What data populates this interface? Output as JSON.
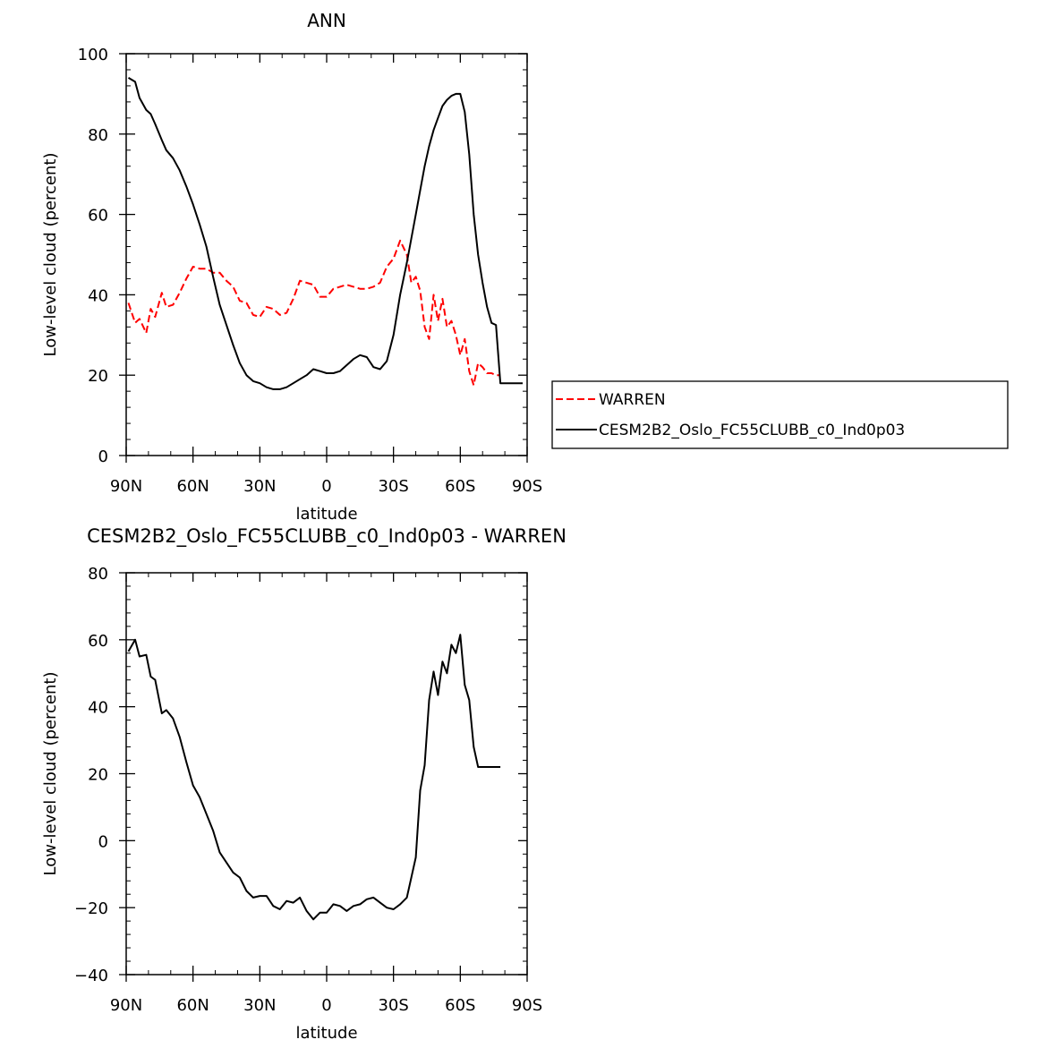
{
  "chart_data": [
    {
      "type": "line",
      "title": "ANN",
      "xlabel": "latitude",
      "ylabel": "Low-level cloud (percent)",
      "xlim": [
        -90,
        90
      ],
      "ylim": [
        0,
        100
      ],
      "x_ticks": [
        -90,
        -60,
        -30,
        0,
        30,
        60,
        90
      ],
      "x_tick_labels": [
        "90N",
        "60N",
        "30N",
        "0",
        "30S",
        "60S",
        "90S"
      ],
      "y_ticks": [
        0,
        20,
        40,
        60,
        80,
        100
      ],
      "y_tick_labels": [
        "0",
        "20",
        "40",
        "60",
        "80",
        "100"
      ],
      "legend_position": "right",
      "series": [
        {
          "name": "WARREN",
          "color": "#ff0000",
          "dash": "dashed",
          "x": [
            -89,
            -86,
            -84,
            -81,
            -79,
            -77,
            -74,
            -72,
            -69,
            -66,
            -63,
            -60,
            -57,
            -54,
            -51,
            -48,
            -45,
            -42,
            -39,
            -36,
            -33,
            -30,
            -27,
            -24,
            -21,
            -18,
            -15,
            -12,
            -9,
            -6,
            -3,
            0,
            3,
            6,
            9,
            12,
            15,
            18,
            21,
            24,
            27,
            30,
            33,
            36,
            38,
            40,
            42,
            44,
            46,
            48,
            50,
            52,
            54,
            56,
            58,
            60,
            62,
            64,
            66,
            68,
            70,
            72,
            74,
            76,
            78
          ],
          "y": [
            38,
            33,
            34,
            30.5,
            36.5,
            34.5,
            40.5,
            37,
            37.5,
            40.5,
            44,
            47,
            46.5,
            46.5,
            45.5,
            45.5,
            43.5,
            42,
            38.5,
            38,
            35,
            34.5,
            37,
            36.5,
            35,
            35.5,
            39,
            43.5,
            43,
            42.5,
            39.5,
            39.5,
            41.5,
            42,
            42.5,
            42,
            41.5,
            41.5,
            42,
            43,
            47,
            49,
            53.5,
            50,
            43,
            44.5,
            41,
            32,
            29,
            40,
            33.5,
            39,
            32,
            33.5,
            30,
            25,
            29,
            21,
            17.5,
            23,
            22,
            20.5,
            20.5,
            20,
            20
          ]
        },
        {
          "name": "CESM2B2_Oslo_FC55CLUBB_c0_Ind0p03",
          "color": "#000000",
          "dash": "solid",
          "x": [
            -89,
            -86,
            -84,
            -81,
            -79,
            -77,
            -74,
            -72,
            -69,
            -66,
            -63,
            -60,
            -57,
            -54,
            -51,
            -48,
            -45,
            -42,
            -39,
            -36,
            -33,
            -30,
            -27,
            -24,
            -21,
            -18,
            -15,
            -12,
            -9,
            -6,
            -3,
            0,
            3,
            6,
            9,
            12,
            15,
            18,
            21,
            24,
            27,
            30,
            33,
            36,
            38,
            40,
            42,
            44,
            46,
            48,
            50,
            52,
            54,
            56,
            58,
            60,
            62,
            64,
            66,
            68,
            70,
            72,
            74,
            76,
            78,
            80,
            82,
            84,
            86,
            88
          ],
          "y": [
            94,
            93,
            89,
            86,
            85,
            82.5,
            78.5,
            76,
            74,
            71,
            67,
            62.5,
            57.5,
            52,
            44.5,
            37.5,
            32.5,
            27.5,
            23,
            20,
            18.5,
            18,
            17,
            16.5,
            16.5,
            17,
            18,
            19,
            20,
            21.5,
            21,
            20.5,
            20.5,
            21,
            22.5,
            24,
            25,
            24.5,
            22,
            21.5,
            23.5,
            30,
            40,
            48,
            54,
            60,
            66,
            72,
            77,
            81,
            84,
            87,
            88.5,
            89.5,
            90,
            90,
            85.5,
            75,
            60,
            50,
            43,
            37,
            33,
            32.5,
            18,
            18,
            18,
            18,
            18,
            18
          ]
        }
      ]
    },
    {
      "type": "line",
      "title": "CESM2B2_Oslo_FC55CLUBB_c0_Ind0p03 - WARREN",
      "xlabel": "latitude",
      "ylabel": "Low-level cloud (percent)",
      "xlim": [
        -90,
        90
      ],
      "ylim": [
        -40,
        80
      ],
      "x_ticks": [
        -90,
        -60,
        -30,
        0,
        30,
        60,
        90
      ],
      "x_tick_labels": [
        "90N",
        "60N",
        "30N",
        "0",
        "30S",
        "60S",
        "90S"
      ],
      "y_ticks": [
        -40,
        -20,
        0,
        20,
        40,
        60,
        80
      ],
      "y_tick_labels": [
        "-40",
        "-20",
        "0",
        "20",
        "40",
        "60",
        "80"
      ],
      "series": [
        {
          "color": "#000000",
          "dash": "solid",
          "x": [
            -89,
            -86,
            -84,
            -81,
            -79,
            -77,
            -74,
            -72,
            -69,
            -66,
            -63,
            -60,
            -57,
            -54,
            -51,
            -48,
            -45,
            -42,
            -39,
            -36,
            -33,
            -30,
            -27,
            -24,
            -21,
            -18,
            -15,
            -12,
            -9,
            -6,
            -3,
            0,
            3,
            6,
            9,
            12,
            15,
            18,
            21,
            24,
            27,
            30,
            33,
            36,
            38,
            40,
            42,
            44,
            46,
            48,
            50,
            52,
            54,
            56,
            58,
            60,
            62,
            64,
            66,
            68,
            70,
            72,
            74,
            76,
            78
          ],
          "y": [
            56.5,
            60,
            55,
            55.5,
            49,
            48,
            38,
            39,
            36.5,
            31,
            23.5,
            16.5,
            13,
            8,
            3,
            -3.5,
            -6.5,
            -9.5,
            -11,
            -15,
            -17,
            -16.5,
            -16.5,
            -19.5,
            -20.5,
            -18,
            -18.5,
            -17,
            -21,
            -23.5,
            -21.5,
            -21.5,
            -19,
            -19.5,
            -21,
            -19.5,
            -19,
            -17.5,
            -17,
            -18.5,
            -20,
            -20.5,
            -19,
            -17,
            -11,
            -5,
            15,
            22.5,
            42,
            50.5,
            43.5,
            53.5,
            50,
            58.5,
            56,
            61.5,
            46.5,
            42,
            28,
            22,
            22,
            22,
            22,
            22,
            22
          ]
        }
      ]
    }
  ]
}
